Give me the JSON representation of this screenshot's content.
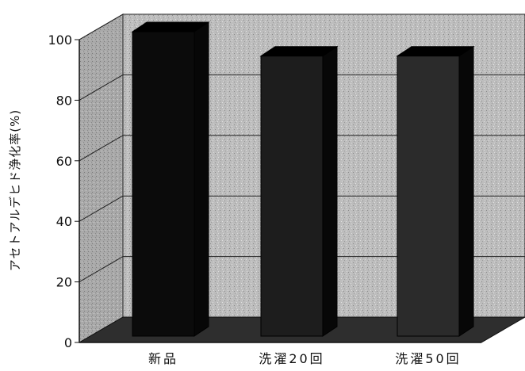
{
  "chart_data": {
    "type": "bar",
    "style": "3d-column",
    "categories": [
      "新品",
      "洗濯20回",
      "洗濯50回"
    ],
    "values": [
      100,
      92,
      92
    ],
    "ylabel": "アセトアルデヒド浄化率(%)",
    "xlabel": "",
    "ylim": [
      0,
      100
    ],
    "yticks": [
      "0",
      "20",
      "40",
      "60",
      "80",
      "100"
    ],
    "grid": true,
    "colors": {
      "bars": [
        "#0b0b0b",
        "#1d1d1d",
        "#2b2b2b"
      ],
      "walls": "#b9b9b9",
      "floor": "#2e2e2e"
    }
  }
}
